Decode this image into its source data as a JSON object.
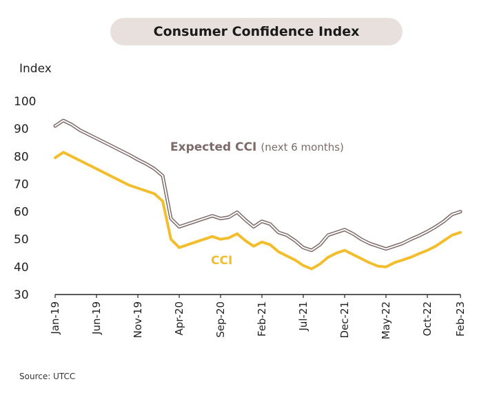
{
  "chart_data": {
    "type": "line",
    "title": "Consumer Confidence Index",
    "ylabel": "Index",
    "ylim": [
      30,
      100
    ],
    "yticks": [
      30,
      40,
      50,
      60,
      70,
      80,
      90,
      100
    ],
    "x_ticks": [
      "Jan-19",
      "Jun-19",
      "Nov-19",
      "Apr-20",
      "Sep-20",
      "Feb-21",
      "Jul-21",
      "Dec-21",
      "May-22",
      "Oct-22",
      "Feb-23"
    ],
    "x_months": [
      "Jan-19",
      "Feb-19",
      "Mar-19",
      "Apr-19",
      "May-19",
      "Jun-19",
      "Jul-19",
      "Aug-19",
      "Sep-19",
      "Oct-19",
      "Nov-19",
      "Dec-19",
      "Jan-20",
      "Feb-20",
      "Mar-20",
      "Apr-20",
      "May-20",
      "Jun-20",
      "Jul-20",
      "Aug-20",
      "Sep-20",
      "Oct-20",
      "Nov-20",
      "Dec-20",
      "Jan-21",
      "Feb-21",
      "Mar-21",
      "Apr-21",
      "May-21",
      "Jun-21",
      "Jul-21",
      "Aug-21",
      "Sep-21",
      "Oct-21",
      "Nov-21",
      "Dec-21",
      "Jan-22",
      "Feb-22",
      "Mar-22",
      "Apr-22",
      "May-22",
      "Jun-22",
      "Jul-22",
      "Aug-22",
      "Sep-22",
      "Oct-22",
      "Nov-22",
      "Dec-22",
      "Jan-23",
      "Feb-23"
    ],
    "grid": false,
    "series": [
      {
        "name": "Expected CCI",
        "annotation": "(next 6 months)",
        "color": "#7d6a6a",
        "values": [
          91,
          93,
          91.5,
          89.5,
          88,
          86.5,
          85,
          83.5,
          82,
          80.5,
          78.8,
          77.3,
          75.5,
          73,
          57.5,
          54.5,
          55.5,
          56.5,
          57.5,
          58.5,
          57.5,
          58,
          59.8,
          57,
          54.5,
          56.5,
          55.5,
          52.5,
          51.5,
          49.5,
          47,
          46,
          48,
          51.5,
          52.5,
          53.5,
          52,
          50,
          48.5,
          47.5,
          46.5,
          47.5,
          48.5,
          50,
          51.3,
          52.8,
          54.5,
          56.5,
          59,
          60
        ]
      },
      {
        "name": "CCI",
        "color": "#f2be2e",
        "values": [
          79.5,
          81.5,
          80,
          78.5,
          77,
          75.5,
          74,
          72.5,
          71,
          69.5,
          68.5,
          67.5,
          66.5,
          63.8,
          50,
          47,
          48,
          49,
          50,
          51,
          50,
          50.5,
          52,
          49.5,
          47.5,
          49,
          48,
          45.5,
          44,
          42.5,
          40.5,
          39.3,
          41,
          43.5,
          45,
          46,
          44.5,
          43,
          41.5,
          40.3,
          40,
          41.5,
          42.5,
          43.5,
          44.8,
          46,
          47.5,
          49.5,
          51.5,
          52.5
        ]
      }
    ]
  },
  "source": "Source: UTCC"
}
